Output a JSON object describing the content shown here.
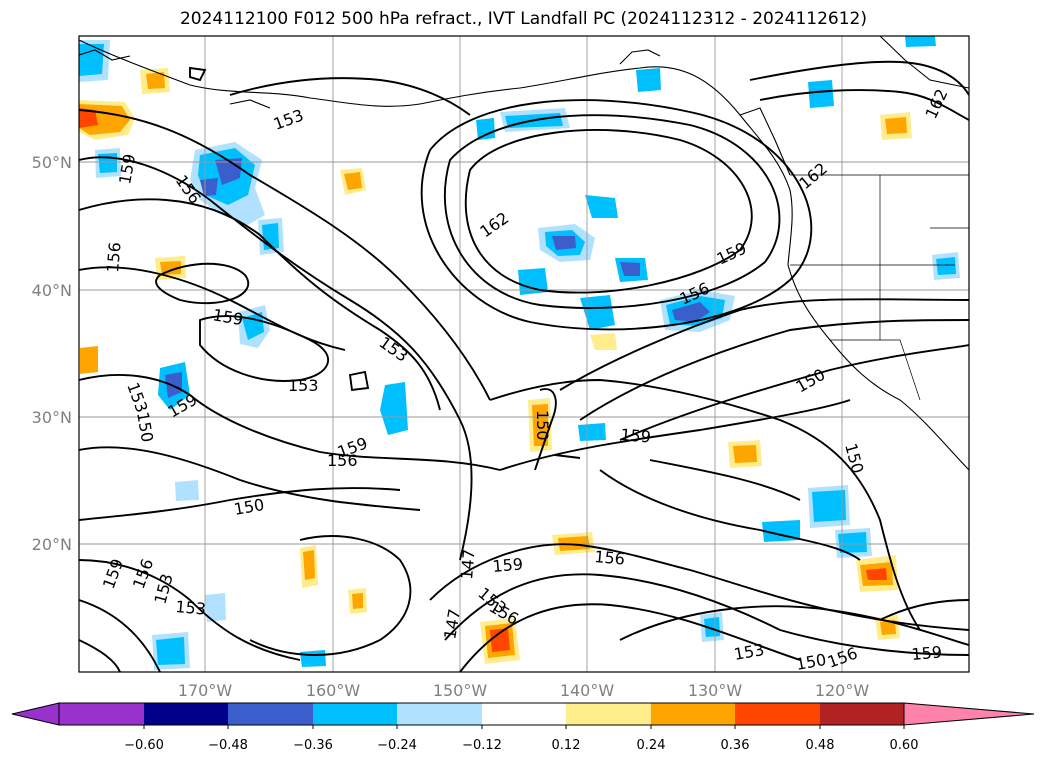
{
  "title": "2024112100 F012 500 hPa refract., IVT Landfall PC (2024112312 - 2024112612)",
  "lat_labels": [
    "50°N",
    "40°N",
    "30°N",
    "20°N"
  ],
  "lon_labels": [
    "170°W",
    "160°W",
    "150°W",
    "140°W",
    "130°W",
    "120°W"
  ],
  "contour_labels": [
    "153",
    "159",
    "156",
    "156",
    "159",
    "153",
    "162",
    "162",
    "159",
    "156",
    "162",
    "153",
    "159",
    "153",
    "150",
    "159",
    "150",
    "159",
    "156",
    "150",
    "150",
    "150",
    "147",
    "159",
    "156",
    "153",
    "159",
    "156",
    "147",
    "156",
    "153",
    "153",
    "150",
    "156",
    "159",
    "153"
  ],
  "colorbar": {
    "ticks": [
      "−0.60",
      "−0.48",
      "−0.36",
      "−0.24",
      "−0.12",
      "0.12",
      "0.24",
      "0.36",
      "0.48",
      "0.60"
    ],
    "colors": [
      "#9932cc",
      "#00008b",
      "#3a5fcd",
      "#00bfff",
      "#b0e2ff",
      "#ffffff",
      "#ffec8b",
      "#ffa500",
      "#ff4500",
      "#b22222",
      "#ff82ab"
    ]
  }
}
